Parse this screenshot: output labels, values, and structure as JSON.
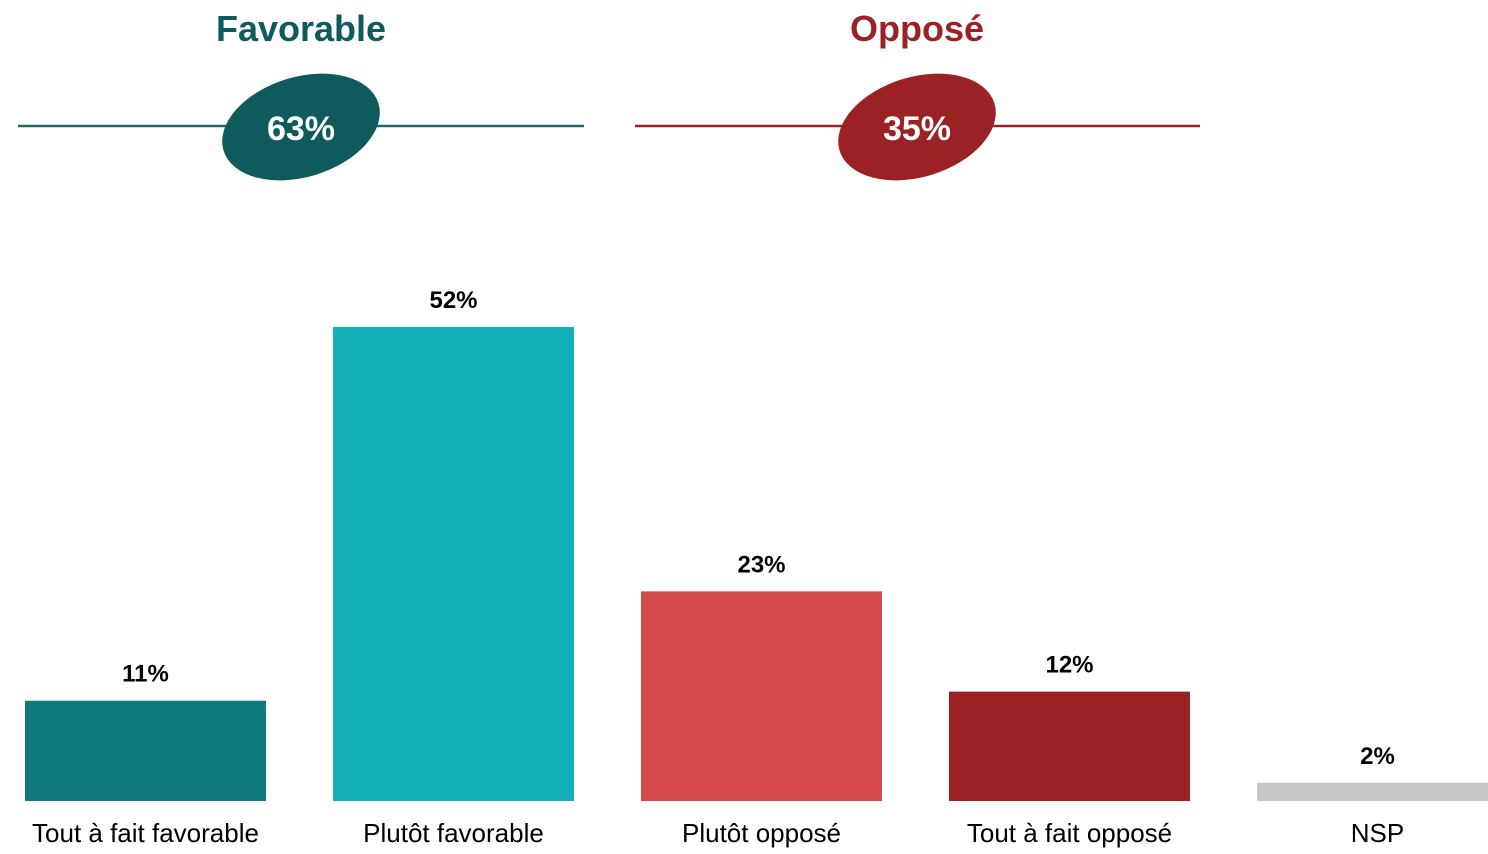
{
  "summary": {
    "groups": [
      {
        "label": "Favorable",
        "total_label": "63%",
        "total": 63,
        "color": "#0e5a5c",
        "line_color": "#1a6a6a"
      },
      {
        "label": "Opposé",
        "total_label": "35%",
        "total": 35,
        "color": "#9a2224",
        "line_color": "#9a2224"
      }
    ]
  },
  "chart_data": {
    "type": "bar",
    "title": "",
    "xlabel": "",
    "ylabel": "",
    "ylim": [
      0,
      52
    ],
    "grid": false,
    "categories": [
      "Tout à fait favorable",
      "Plutôt favorable",
      "Plutôt opposé",
      "Tout à fait opposé",
      "NSP"
    ],
    "values": [
      11,
      52,
      23,
      12,
      2
    ],
    "value_labels": [
      "11%",
      "52%",
      "23%",
      "12%",
      "2%"
    ],
    "colors": [
      "#10797d",
      "#13b0b8",
      "#d64c4e",
      "#9a2224",
      "#c8c8c8"
    ]
  }
}
